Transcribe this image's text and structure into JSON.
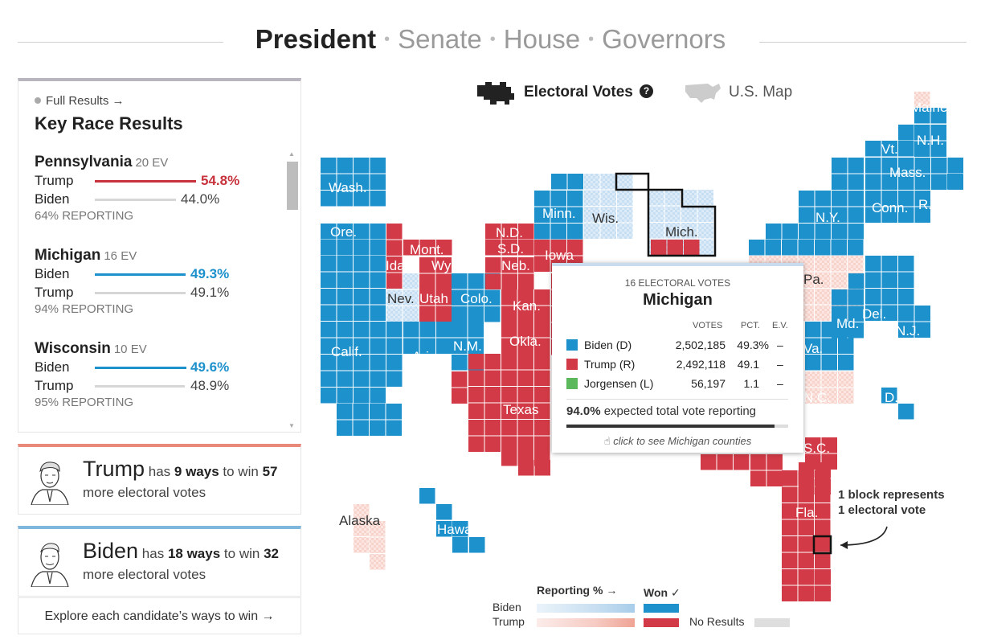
{
  "nav": {
    "tabs": [
      "President",
      "Senate",
      "House",
      "Governors"
    ],
    "active": "President"
  },
  "key_races": {
    "full_results": "Full Results →",
    "title": "Key Race Results",
    "races": [
      {
        "state": "Pennsylvania",
        "ev": "20 EV",
        "rows": [
          {
            "name": "Trump",
            "pct": "54.8%",
            "leader": true,
            "color": "#c8323c",
            "share": 0.548
          },
          {
            "name": "Biden",
            "pct": "44.0%",
            "leader": false,
            "color": "#d6d6d6",
            "share": 0.44
          }
        ],
        "reporting": "64% REPORTING"
      },
      {
        "state": "Michigan",
        "ev": "16 EV",
        "rows": [
          {
            "name": "Biden",
            "pct": "49.3%",
            "leader": true,
            "color": "#1d91cc",
            "share": 0.493
          },
          {
            "name": "Trump",
            "pct": "49.1%",
            "leader": false,
            "color": "#d6d6d6",
            "share": 0.491
          }
        ],
        "reporting": "94% REPORTING"
      },
      {
        "state": "Wisconsin",
        "ev": "10 EV",
        "rows": [
          {
            "name": "Biden",
            "pct": "49.6%",
            "leader": true,
            "color": "#1d91cc",
            "share": 0.496
          },
          {
            "name": "Trump",
            "pct": "48.9%",
            "leader": false,
            "color": "#d6d6d6",
            "share": 0.489
          }
        ],
        "reporting": "95% REPORTING"
      }
    ]
  },
  "ways": {
    "trump": {
      "name": "Trump",
      "has": "has",
      "count": "9 ways",
      "to_win": "to win",
      "votes": "57",
      "more": "more electoral votes",
      "accent": "#e8897a"
    },
    "biden": {
      "name": "Biden",
      "has": "has",
      "count": "18 ways",
      "to_win": "to win",
      "votes": "32",
      "more": "more electoral votes",
      "accent": "#7fb7dc"
    },
    "explore": "Explore each candidate’s ways to win →"
  },
  "map_modes": {
    "electoral": "Electoral Votes",
    "help": "?",
    "us_map": "U.S. Map"
  },
  "state_labels": [
    "Wash.",
    "Ore.",
    "Calif.",
    "Nev.",
    "Idaho",
    "Mont.",
    "Wyo.",
    "Utah",
    "Colo.",
    "Ariz.",
    "N.M.",
    "N.D.",
    "S.D.",
    "Neb.",
    "Kan.",
    "Okla.",
    "Texas",
    "Minn.",
    "Iowa",
    "Wis.",
    "Mich.",
    "Pa.",
    "N.Y.",
    "Vt.",
    "N.H.",
    "Maine",
    "Mass.",
    "Conn.",
    "R.I.",
    "N.J.",
    "Del.",
    "Md.",
    "Va.",
    "N.C.",
    "S.C.",
    "Fla.",
    "D.C.",
    "Alaska",
    "Hawaii"
  ],
  "tooltip": {
    "ev": "16 ELECTORAL VOTES",
    "state": "Michigan",
    "headers": {
      "votes": "VOTES",
      "pct": "PCT.",
      "ev": "E.V."
    },
    "candidates": [
      {
        "name": "Biden (D)",
        "votes": "2,502,185",
        "pct": "49.3%",
        "ev": "–",
        "color": "#1d91cc"
      },
      {
        "name": "Trump (R)",
        "votes": "2,492,118",
        "pct": "49.1",
        "ev": "–",
        "color": "#d13a46"
      },
      {
        "name": "Jorgensen (L)",
        "votes": "56,197",
        "pct": "1.1",
        "ev": "–",
        "color": "#5cb85c"
      }
    ],
    "reporting_pct": "94.0%",
    "reporting_text": "expected total vote reporting",
    "reporting_value": 0.94,
    "click": "click to see Michigan counties"
  },
  "block_note": {
    "line1": "1 block represents",
    "line2": "1 electoral vote"
  },
  "legend": {
    "reporting": "Reporting % →",
    "won": "Won ✓",
    "biden": "Biden",
    "trump": "Trump",
    "no_results": "No Results"
  },
  "colors": {
    "biden": "#1d91cc",
    "trump": "#d13a46",
    "biden_light": "#c8e0f2",
    "trump_light": "#f6cfc8",
    "none": "#dedede"
  }
}
